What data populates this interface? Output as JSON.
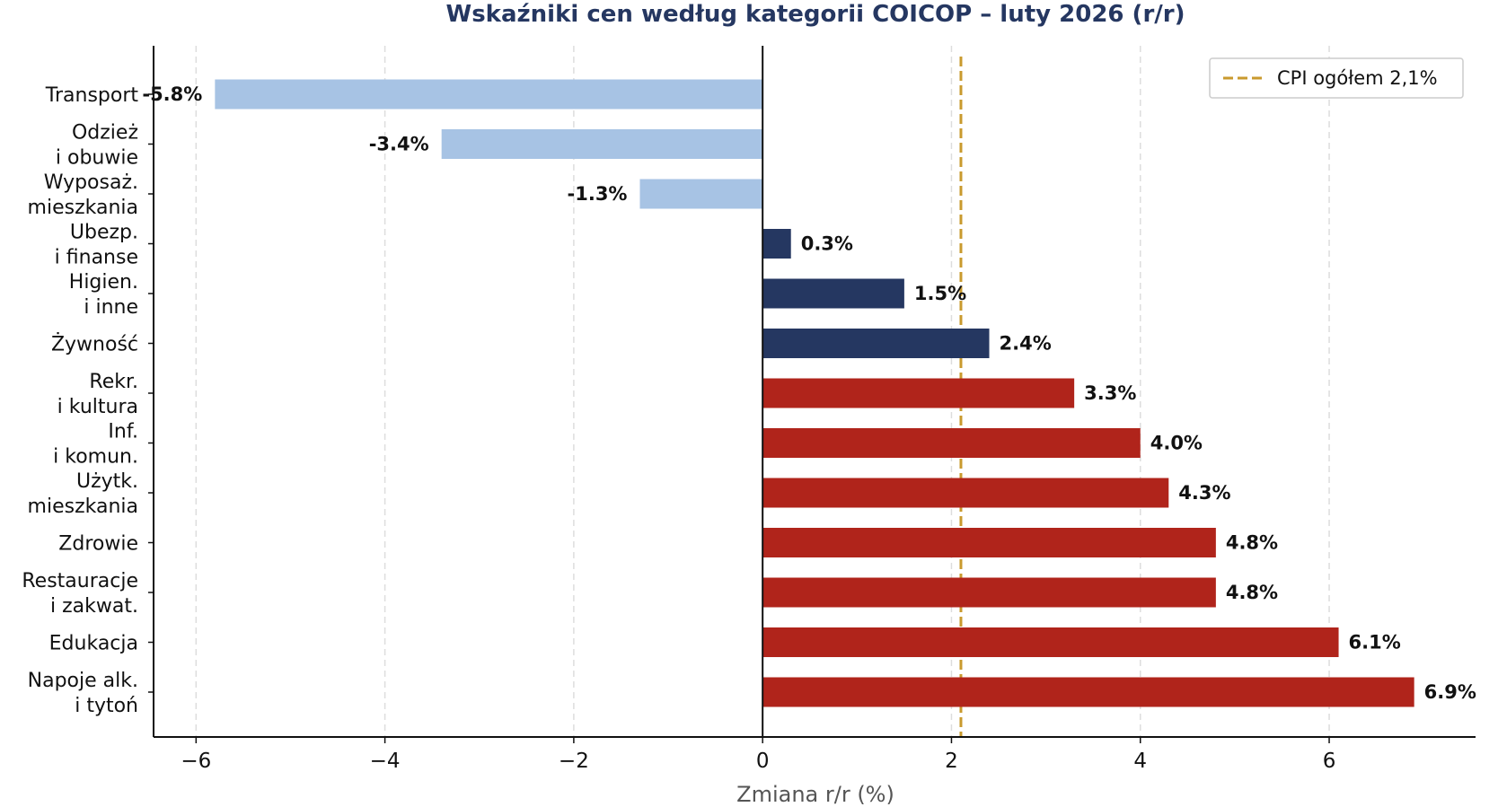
{
  "chart_data": {
    "type": "bar",
    "orientation": "horizontal",
    "title": "Wskaźniki cen według kategorii COICOP – luty 2026 (r/r)",
    "xlabel": "Zmiana r/r (%)",
    "ylabel": "",
    "xlim": [
      -6.45,
      7.55
    ],
    "xticks": [
      -6,
      -4,
      -2,
      0,
      2,
      4,
      6
    ],
    "xtick_labels": [
      "−6",
      "−4",
      "−2",
      "0",
      "2",
      "4",
      "6"
    ],
    "grid": "vertical dashed",
    "categories": [
      [
        "Transport"
      ],
      [
        "Odzież",
        "i obuwie"
      ],
      [
        "Wyposaż.",
        "mieszkania"
      ],
      [
        "Ubezp.",
        "i finanse"
      ],
      [
        "Higien.",
        "i inne"
      ],
      [
        "Żywność"
      ],
      [
        "Rekr.",
        "i kultura"
      ],
      [
        "Inf.",
        "i komun."
      ],
      [
        "Użytk.",
        "mieszkania"
      ],
      [
        "Zdrowie"
      ],
      [
        "Restauracje",
        "i zakwat."
      ],
      [
        "Edukacja"
      ],
      [
        "Napoje alk.",
        "i tytoń"
      ]
    ],
    "values": [
      -5.8,
      -3.4,
      -1.3,
      0.3,
      1.5,
      2.4,
      3.3,
      4.0,
      4.3,
      4.8,
      4.8,
      6.1,
      6.9
    ],
    "value_labels": [
      "-5.8%",
      "-3.4%",
      "-1.3%",
      "0.3%",
      "1.5%",
      "2.4%",
      "3.3%",
      "4.0%",
      "4.3%",
      "4.8%",
      "4.8%",
      "6.1%",
      "6.9%"
    ],
    "bar_colors": [
      "#a7c3e4",
      "#a7c3e4",
      "#a7c3e4",
      "#253761",
      "#253761",
      "#253761",
      "#b0241b",
      "#b0241b",
      "#b0241b",
      "#b0241b",
      "#b0241b",
      "#b0241b",
      "#b0241b"
    ],
    "reference_line": {
      "value": 2.1,
      "label": "CPI ogółem 2,1%",
      "color": "#c99a2e"
    },
    "legend_placement": "top-right",
    "colors": {
      "title": "#253761",
      "axis": "#111111",
      "grid": "#dddddd",
      "xlabel": "#555555"
    }
  }
}
